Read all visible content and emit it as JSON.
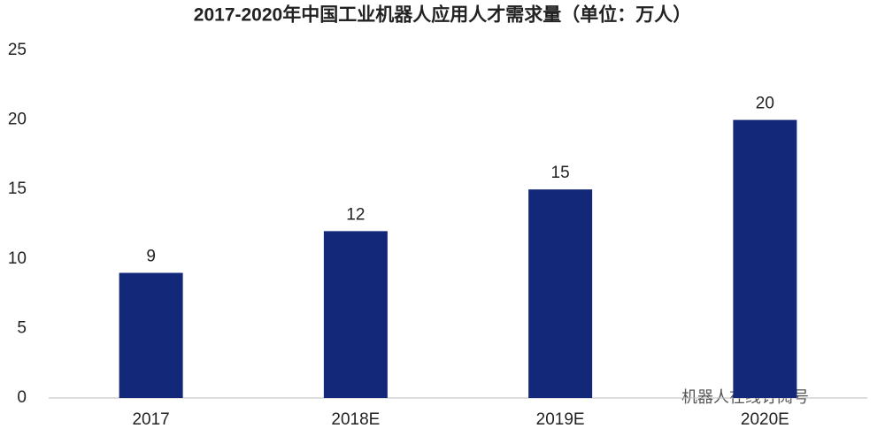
{
  "chart_data": {
    "type": "bar",
    "title": "2017-2020年中国工业机器人应用人才需求量（单位：万人）",
    "categories": [
      "2017",
      "2018E",
      "2019E",
      "2020E"
    ],
    "values": [
      9,
      12,
      15,
      20
    ],
    "color": "#14287a",
    "ylim": [
      0,
      25
    ],
    "yticks": [
      0,
      5,
      10,
      15,
      20,
      25
    ],
    "grid": false,
    "watermark": "机器人在线订阅号"
  }
}
